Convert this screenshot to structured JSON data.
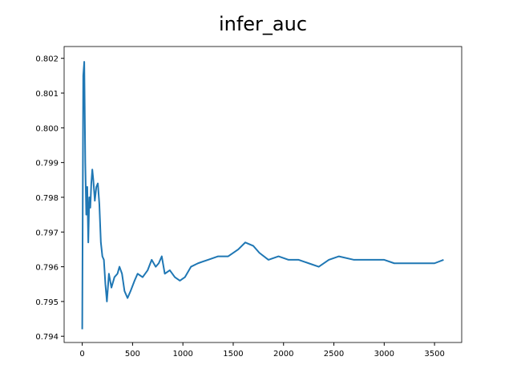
{
  "chart_data": {
    "type": "line",
    "title": "infer_auc",
    "x": [
      0,
      10,
      20,
      30,
      40,
      50,
      60,
      70,
      80,
      90,
      100,
      110,
      125,
      140,
      155,
      170,
      185,
      200,
      215,
      230,
      245,
      265,
      290,
      320,
      350,
      370,
      395,
      420,
      450,
      480,
      520,
      550,
      600,
      650,
      690,
      730,
      760,
      790,
      820,
      870,
      920,
      970,
      1020,
      1080,
      1150,
      1250,
      1350,
      1450,
      1550,
      1620,
      1700,
      1760,
      1850,
      1950,
      2050,
      2150,
      2250,
      2350,
      2450,
      2550,
      2700,
      2850,
      3000,
      3100,
      3200,
      3300,
      3400,
      3500,
      3590
    ],
    "series": [
      {
        "name": "infer_auc",
        "color": "#1f77b4",
        "values": [
          0.7942,
          0.8015,
          0.8019,
          0.799,
          0.7975,
          0.7983,
          0.7967,
          0.798,
          0.7977,
          0.7984,
          0.7988,
          0.7985,
          0.7979,
          0.7983,
          0.7984,
          0.7978,
          0.7967,
          0.7963,
          0.7962,
          0.7955,
          0.795,
          0.7958,
          0.7954,
          0.7957,
          0.7958,
          0.796,
          0.7958,
          0.7953,
          0.7951,
          0.7953,
          0.7956,
          0.7958,
          0.7957,
          0.7959,
          0.7962,
          0.796,
          0.7961,
          0.7963,
          0.7958,
          0.7959,
          0.7957,
          0.7956,
          0.7957,
          0.796,
          0.7961,
          0.7962,
          0.7963,
          0.7963,
          0.7965,
          0.7967,
          0.7966,
          0.7964,
          0.7962,
          0.7963,
          0.7962,
          0.7962,
          0.7961,
          0.796,
          0.7962,
          0.7963,
          0.7962,
          0.7962,
          0.7962,
          0.7961,
          0.7961,
          0.7961,
          0.7961,
          0.7961,
          0.7962
        ]
      }
    ],
    "xlim": [
      -180,
      3770
    ],
    "xticks": [
      0,
      500,
      1000,
      1500,
      2000,
      2500,
      3000,
      3500
    ],
    "ylim": [
      0.79382,
      0.80234
    ],
    "yticks": [
      0.794,
      0.795,
      0.796,
      0.797,
      0.798,
      0.799,
      {
        "value": 0.8,
        "label": "0.800"
      },
      0.801,
      0.802
    ]
  }
}
